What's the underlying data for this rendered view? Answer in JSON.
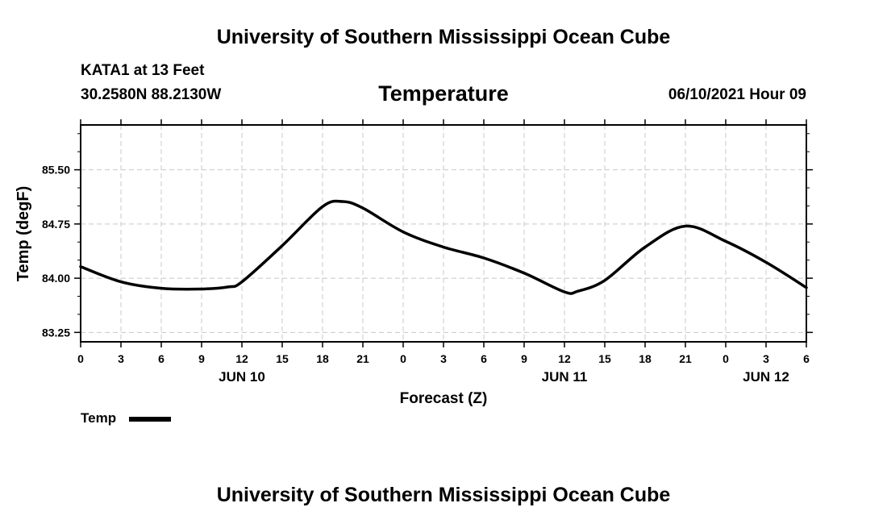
{
  "header": {
    "title_top": "University of Southern Mississippi Ocean Cube",
    "station_line": "KATA1 at 13 Feet",
    "coords": "30.2580N  88.2130W",
    "chart_title": "Temperature",
    "timestamp": "06/10/2021 Hour 09",
    "title_bottom": "University of Southern Mississippi Ocean Cube"
  },
  "legend": {
    "label": "Temp"
  },
  "chart_data": {
    "type": "line",
    "title": "Temperature",
    "xlabel": "Forecast (Z)",
    "ylabel": "Temp (degF)",
    "x_unit": "forecast hour from JUN 10 00Z",
    "x_tick_labels": [
      "0",
      "3",
      "6",
      "9",
      "12",
      "15",
      "18",
      "21",
      "0",
      "3",
      "6",
      "9",
      "12",
      "15",
      "18",
      "21",
      "0",
      "3",
      "6"
    ],
    "date_labels": [
      {
        "hour": 12,
        "label": "JUN 10"
      },
      {
        "hour": 36,
        "label": "JUN 11"
      },
      {
        "hour": 51,
        "label": "JUN 12"
      }
    ],
    "xlim": [
      0,
      54
    ],
    "ylim": [
      83.12,
      86.12
    ],
    "y_ticks": [
      83.25,
      84.0,
      84.75,
      85.5
    ],
    "y_tick_labels": [
      "83.25",
      "84.00",
      "84.75",
      "85.50"
    ],
    "grid": true,
    "series": [
      {
        "name": "Temp",
        "color": "#000000",
        "x": [
          0,
          3,
          6,
          9,
          11,
          12,
          15,
          18,
          19.5,
          21,
          24,
          27,
          30,
          33,
          36,
          37,
          39,
          42,
          45,
          48,
          51,
          54
        ],
        "y": [
          84.16,
          83.95,
          83.86,
          83.85,
          83.88,
          83.95,
          84.45,
          84.99,
          85.06,
          84.97,
          84.64,
          84.43,
          84.28,
          84.07,
          83.81,
          83.82,
          83.97,
          84.43,
          84.72,
          84.51,
          84.22,
          83.87
        ]
      }
    ]
  }
}
